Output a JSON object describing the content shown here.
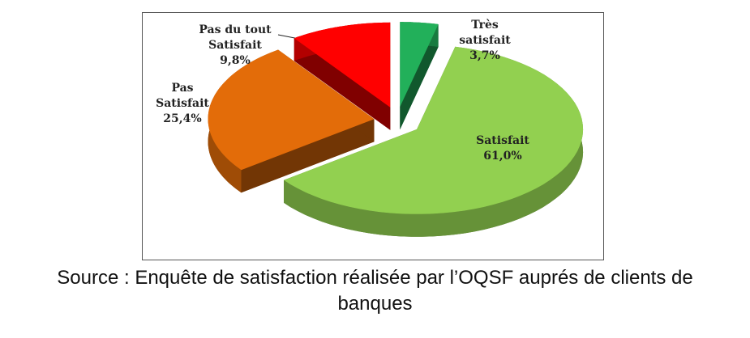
{
  "chart_data": {
    "type": "pie",
    "categories": [
      "Très satisfait",
      "Satisfait",
      "Pas Satisfait",
      "Pas du tout Satisfait"
    ],
    "values": [
      3.7,
      61.0,
      25.4,
      9.8
    ],
    "value_labels": [
      "3,7%",
      "61,0%",
      "25,4%",
      "9,8%"
    ],
    "colors": [
      "#22b05a",
      "#92d050",
      "#e36c09",
      "#ff0000"
    ]
  },
  "source": "Source : Enquête de satisfaction réalisée par l’OQSF auprés de clients de banques"
}
